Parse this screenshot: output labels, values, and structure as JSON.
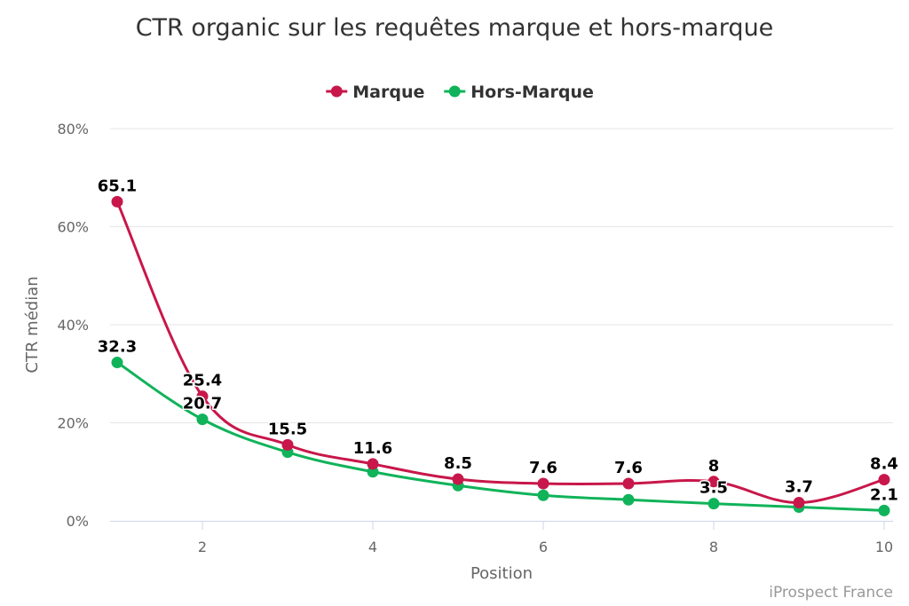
{
  "chart_data": {
    "type": "line",
    "title": "CTR organic sur les requêtes marque et hors-marque",
    "xlabel": "Position",
    "ylabel": "CTR médian",
    "x": [
      1,
      2,
      3,
      4,
      5,
      6,
      7,
      8,
      9,
      10
    ],
    "xlim": [
      1,
      10
    ],
    "ylim": [
      0,
      80
    ],
    "x_ticks": [
      2,
      4,
      6,
      8,
      10
    ],
    "y_ticks": [
      0,
      20,
      40,
      60,
      80
    ],
    "y_tick_suffix": "%",
    "grid": true,
    "legend_position": "top-center",
    "series": [
      {
        "name": "Marque",
        "color": "#c8174a",
        "values": [
          65.1,
          25.4,
          15.5,
          11.6,
          8.5,
          7.6,
          7.6,
          8,
          3.7,
          8.4
        ]
      },
      {
        "name": "Hors-Marque",
        "color": "#10b35a",
        "values": [
          32.3,
          20.7,
          14,
          10,
          7.2,
          5.2,
          4.3,
          3.5,
          2.8,
          2.1
        ]
      }
    ],
    "data_labels": {
      "Marque": [
        "65.1",
        "25.4",
        "15.5",
        "11.6",
        "8.5",
        "7.6",
        "7.6",
        "8",
        "3.7",
        "8.4"
      ],
      "Hors-Marque": [
        "32.3",
        "20.7",
        "",
        "",
        "",
        "",
        "",
        "3.5",
        "",
        "2.1"
      ]
    },
    "credit": "iProspect France"
  }
}
